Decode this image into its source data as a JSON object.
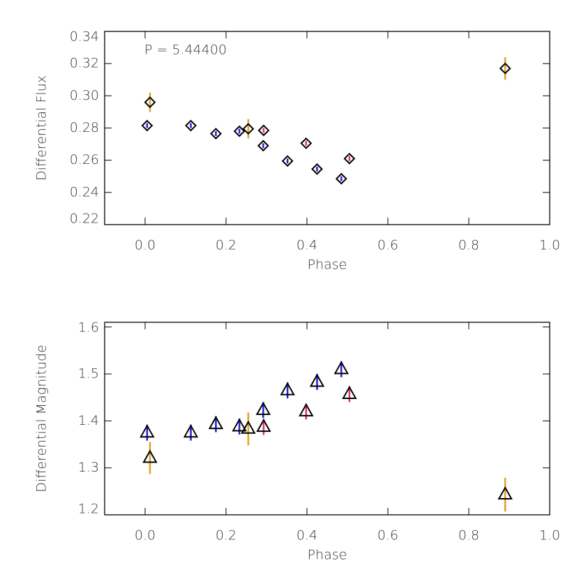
{
  "chart_data": [
    {
      "type": "scatter",
      "annotation": "P = 5.44400",
      "xlabel": "Phase",
      "ylabel": "Differential Flux",
      "xlim": [
        -0.1,
        1.0
      ],
      "xticks": [
        {
          "value": 0,
          "label": "0.0"
        },
        0.2,
        0.4,
        0.6,
        0.8,
        {
          "value": 1,
          "label": "1.0"
        }
      ],
      "ylim": [
        0.22,
        0.34
      ],
      "yticks": [
        0.22,
        0.24,
        0.26,
        0.28,
        {
          "value": 0.3,
          "label": "0.30"
        },
        0.32,
        0.34
      ],
      "marker": "diamond",
      "series": [
        {
          "color": "#1f1fd6",
          "x": [
            0.005,
            0.113,
            0.175,
            0.233,
            0.292,
            0.352,
            0.425,
            0.485
          ],
          "values": [
            0.2815,
            0.2815,
            0.2765,
            0.278,
            0.269,
            0.2595,
            0.2545,
            0.2485
          ],
          "errors": [
            0.0015,
            0.0015,
            0.0015,
            0.0015,
            0.0015,
            0.0015,
            0.0015,
            0.0015
          ]
        },
        {
          "color": "#e0307a",
          "x": [
            0.293,
            0.398,
            0.505
          ],
          "values": [
            0.2785,
            0.2705,
            0.261
          ],
          "errors": [
            0.0015,
            0.0015,
            0.0015
          ]
        },
        {
          "color": "#e0a020",
          "x": [
            0.012,
            0.255,
            0.89
          ],
          "values": [
            0.296,
            0.2795,
            0.317
          ],
          "errors": [
            0.006,
            0.006,
            0.007
          ]
        }
      ]
    },
    {
      "type": "scatter",
      "xlabel": "Phase",
      "ylabel": "Differential Magnitude",
      "xlim": [
        -0.1,
        1.0
      ],
      "xticks": [
        {
          "value": 0,
          "label": "0.0"
        },
        0.2,
        0.4,
        0.6,
        0.8,
        {
          "value": 1,
          "label": "1.0"
        }
      ],
      "ylim": [
        1.2,
        1.61
      ],
      "yticks": [
        1.2,
        1.3,
        1.4,
        1.5,
        1.6
      ],
      "marker": "triangle",
      "series": [
        {
          "color": "#1f1fd6",
          "x": [
            0.005,
            0.113,
            0.175,
            0.233,
            0.292,
            0.352,
            0.425,
            0.485
          ],
          "values": [
            1.375,
            1.375,
            1.393,
            1.388,
            1.423,
            1.465,
            1.483,
            1.51
          ],
          "errors": [
            0.017,
            0.017,
            0.017,
            0.017,
            0.017,
            0.017,
            0.017,
            0.017
          ]
        },
        {
          "color": "#e0307a",
          "x": [
            0.293,
            0.398,
            0.505
          ],
          "values": [
            1.387,
            1.42,
            1.457
          ],
          "errors": [
            0.017,
            0.017,
            0.017
          ]
        },
        {
          "color": "#e0a020",
          "x": [
            0.012,
            0.255,
            0.89
          ],
          "values": [
            1.321,
            1.383,
            1.243
          ],
          "errors": [
            0.034,
            0.035,
            0.036
          ]
        }
      ]
    }
  ]
}
